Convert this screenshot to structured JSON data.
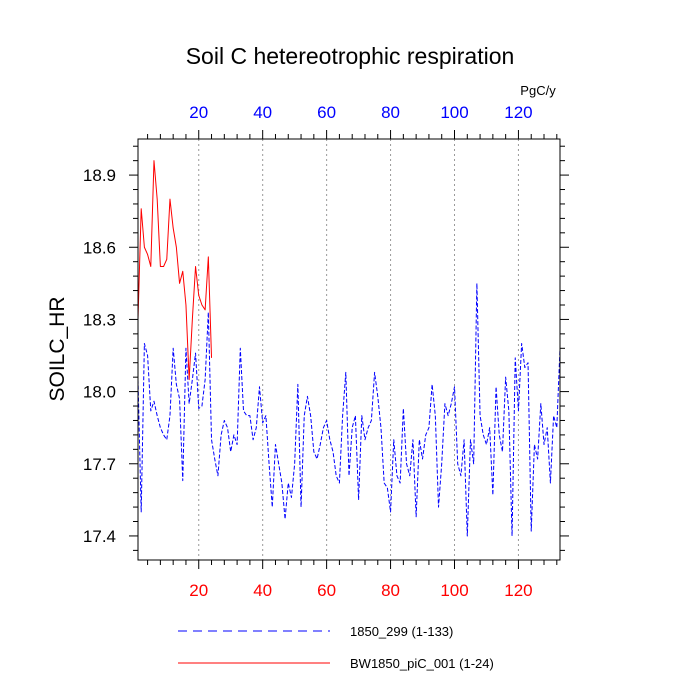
{
  "chart_data": {
    "type": "line",
    "title": "Soil C hetereotrophic respiration",
    "ylabel": "SOILC_HR",
    "units": "PgC/y",
    "xlim": [
      1,
      133
    ],
    "ylim": [
      17.3,
      19.05
    ],
    "y_ticks": [
      17.4,
      17.7,
      18.0,
      18.3,
      18.6,
      18.9
    ],
    "y_tick_labels": [
      "17.4",
      "17.7",
      "18.0",
      "18.3",
      "18.6",
      "18.9"
    ],
    "y_minor_step": 0.06,
    "bottom_ticks": [
      20,
      40,
      60,
      80,
      100,
      120
    ],
    "bottom_tick_labels": [
      "20",
      "40",
      "60",
      "80",
      "100",
      "120"
    ],
    "bottom_tick_color": "#ff0000",
    "top_ticks": [
      20,
      40,
      60,
      80,
      100,
      120
    ],
    "top_tick_labels": [
      "20",
      "40",
      "60",
      "80",
      "100",
      "120"
    ],
    "top_tick_color": "#0000ff",
    "x_minor_step": 4,
    "grid": "vertical dotted at major x ticks",
    "series": [
      {
        "name": "1850_299 (1-133)",
        "color": "#0000ff",
        "dash": "dashed",
        "x_start": 1,
        "values": [
          18.05,
          17.5,
          18.2,
          18.15,
          17.92,
          17.96,
          17.9,
          17.85,
          17.82,
          17.8,
          17.9,
          18.18,
          18.03,
          17.97,
          17.63,
          18.18,
          17.95,
          18.05,
          18.16,
          17.93,
          17.94,
          18.05,
          18.33,
          17.8,
          17.72,
          17.65,
          17.82,
          17.88,
          17.85,
          17.75,
          17.82,
          17.78,
          18.18,
          17.92,
          17.9,
          17.9,
          17.8,
          17.85,
          18.02,
          17.87,
          17.9,
          17.7,
          17.52,
          17.78,
          17.7,
          17.62,
          17.47,
          17.62,
          17.56,
          17.7,
          18.03,
          17.52,
          17.9,
          17.98,
          17.9,
          17.75,
          17.72,
          17.78,
          17.85,
          17.88,
          17.8,
          17.75,
          17.65,
          17.62,
          17.9,
          18.08,
          17.65,
          17.85,
          17.9,
          17.55,
          17.9,
          17.8,
          17.85,
          17.88,
          18.08,
          17.98,
          17.85,
          17.62,
          17.6,
          17.5,
          17.8,
          17.65,
          17.62,
          17.93,
          17.7,
          17.65,
          17.8,
          17.48,
          17.8,
          17.72,
          17.82,
          17.85,
          18.03,
          17.9,
          17.52,
          17.7,
          17.95,
          17.9,
          17.95,
          18.02,
          17.7,
          17.65,
          17.8,
          17.4,
          17.8,
          17.7,
          18.45,
          17.9,
          17.82,
          17.78,
          17.85,
          17.57,
          18.02,
          17.82,
          17.75,
          18.06,
          17.92,
          17.4,
          18.14,
          17.92,
          18.2,
          18.1,
          18.12,
          17.42,
          17.78,
          17.72,
          17.95,
          17.78,
          17.85,
          17.62,
          17.9,
          17.85,
          18.18
        ]
      },
      {
        "name": "BW1850_piC_001 (1-24)",
        "color": "#ff0000",
        "dash": "solid",
        "x_start": 1,
        "values": [
          18.3,
          18.76,
          18.6,
          18.57,
          18.52,
          18.96,
          18.8,
          18.52,
          18.52,
          18.55,
          18.8,
          18.68,
          18.6,
          18.45,
          18.5,
          18.36,
          18.05,
          18.3,
          18.52,
          18.4,
          18.36,
          18.34,
          18.56,
          18.14
        ]
      }
    ]
  },
  "legend": [
    {
      "label": "1850_299 (1-133)"
    },
    {
      "label": "BW1850_piC_001 (1-24)"
    }
  ]
}
